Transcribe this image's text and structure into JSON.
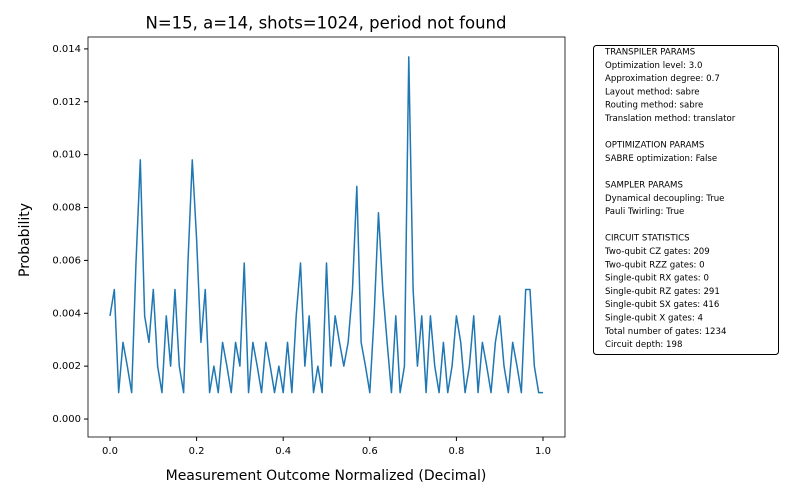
{
  "chart_data": {
    "type": "line",
    "title": "N=15, a=14, shots=1024, period not found",
    "x_label": "Measurement Outcome Normalized (Decimal)",
    "y_label": "Probability",
    "x": [
      0,
      0.01,
      0.02,
      0.03,
      0.04,
      0.05,
      0.06,
      0.07,
      0.08,
      0.09,
      0.1,
      0.11,
      0.12,
      0.13,
      0.14,
      0.15,
      0.16,
      0.17,
      0.18,
      0.19,
      0.2,
      0.21,
      0.22,
      0.23,
      0.24,
      0.25,
      0.26,
      0.27,
      0.28,
      0.29,
      0.3,
      0.31,
      0.32,
      0.33,
      0.34,
      0.35,
      0.36,
      0.37,
      0.38,
      0.39,
      0.4,
      0.41,
      0.42,
      0.43,
      0.44,
      0.45,
      0.46,
      0.47,
      0.48,
      0.49,
      0.5,
      0.51,
      0.52,
      0.53,
      0.54,
      0.55,
      0.56,
      0.57,
      0.58,
      0.59,
      0.6,
      0.61,
      0.62,
      0.63,
      0.64,
      0.65,
      0.66,
      0.67,
      0.68,
      0.69,
      0.7,
      0.71,
      0.72,
      0.73,
      0.74,
      0.75,
      0.76,
      0.77,
      0.78,
      0.79,
      0.8,
      0.81,
      0.82,
      0.83,
      0.84,
      0.85,
      0.86,
      0.87,
      0.88,
      0.89,
      0.9,
      0.91,
      0.92,
      0.93,
      0.94,
      0.95,
      0.96,
      0.97,
      0.98,
      0.99,
      1
    ],
    "series": [
      {
        "color": "#1f77b4",
        "values": [
          0.0039,
          0.0049,
          0.001,
          0.0029,
          0.002,
          0.001,
          0.0059,
          0.0098,
          0.0039,
          0.0029,
          0.0049,
          0.002,
          0.001,
          0.0039,
          0.002,
          0.0049,
          0.002,
          0.001,
          0.0059,
          0.0098,
          0.0068,
          0.0029,
          0.0049,
          0.001,
          0.002,
          0.001,
          0.0029,
          0.002,
          0.001,
          0.0029,
          0.002,
          0.0059,
          0.001,
          0.0029,
          0.002,
          0.001,
          0.0029,
          0.002,
          0.001,
          0.002,
          0.001,
          0.0029,
          0.001,
          0.0039,
          0.0059,
          0.002,
          0.0039,
          0.001,
          0.002,
          0.001,
          0.0059,
          0.002,
          0.0039,
          0.0029,
          0.002,
          0.0029,
          0.0049,
          0.0088,
          0.0029,
          0.002,
          0.001,
          0.0039,
          0.0078,
          0.0049,
          0.0029,
          0.001,
          0.0039,
          0.001,
          0.002,
          0.0137,
          0.0049,
          0.002,
          0.0039,
          0.001,
          0.0039,
          0.002,
          0.001,
          0.0029,
          0.001,
          0.002,
          0.0039,
          0.0029,
          0.001,
          0.002,
          0.0039,
          0.001,
          0.0029,
          0.002,
          0.001,
          0.0029,
          0.0039,
          0.002,
          0.001,
          0.0029,
          0.002,
          0.001,
          0.0049,
          0.0049,
          0.002,
          0.001,
          0.001
        ]
      }
    ],
    "xlim": [
      -0.0508,
      1.0508
    ],
    "ylim": [
      -0.00068,
      0.01445
    ],
    "xticks": [
      {
        "value": 0,
        "label": "0.0"
      },
      {
        "value": 0.2,
        "label": "0.2"
      },
      {
        "value": 0.4,
        "label": "0.4"
      },
      {
        "value": 0.6,
        "label": "0.6"
      },
      {
        "value": 0.8,
        "label": "0.8"
      },
      {
        "value": 1,
        "label": "1.0"
      }
    ],
    "yticks": [
      {
        "value": 0,
        "label": "0.000"
      },
      {
        "value": 0.002,
        "label": "0.002"
      },
      {
        "value": 0.004,
        "label": "0.004"
      },
      {
        "value": 0.006,
        "label": "0.006"
      },
      {
        "value": 0.008,
        "label": "0.008"
      },
      {
        "value": 0.01,
        "label": "0.010"
      },
      {
        "value": 0.012,
        "label": "0.012"
      },
      {
        "value": 0.014,
        "label": "0.014"
      }
    ],
    "info_box": [
      {
        "heading": "TRANSPILER PARAMS",
        "lines": [
          "Optimization level: 3.0",
          "Approximation degree: 0.7",
          "Layout method: sabre",
          "Routing method: sabre",
          "Translation method: translator"
        ]
      },
      {
        "heading": "OPTIMIZATION PARAMS",
        "lines": [
          "SABRE optimization: False"
        ]
      },
      {
        "heading": "SAMPLER PARAMS",
        "lines": [
          "Dynamical decoupling: True",
          "Pauli Twirling: True"
        ]
      },
      {
        "heading": "CIRCUIT STATISTICS",
        "lines": [
          "Two-qubit CZ gates: 209",
          "Two-qubit RZZ gates: 0",
          "Single-qubit RX gates: 0",
          "Single-qubit RZ gates: 291",
          "Single-qubit SX gates: 416",
          "Single-qubit X gates: 4",
          "Total number of gates: 1234",
          "Circuit depth: 198"
        ]
      }
    ]
  }
}
